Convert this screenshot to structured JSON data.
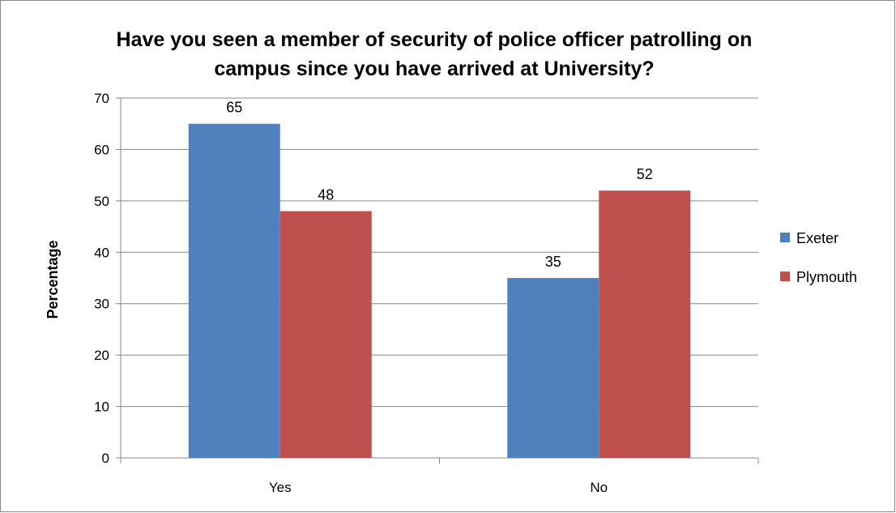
{
  "chart_data": {
    "type": "bar",
    "title": "Have you seen a member of security of police officer patrolling on campus since you have arrived at University?",
    "categories": [
      "Yes",
      "No"
    ],
    "series": [
      {
        "name": "Exeter",
        "values": [
          65,
          35
        ],
        "color": "#4F81BD"
      },
      {
        "name": "Plymouth",
        "values": [
          48,
          52
        ],
        "color": "#C0504D"
      }
    ],
    "xlabel": "",
    "ylabel": "Percentage",
    "ylim": [
      0,
      70
    ],
    "yticks": [
      0,
      10,
      20,
      30,
      40,
      50,
      60,
      70
    ],
    "grid": true,
    "legend_position": "right",
    "data_labels": true
  }
}
